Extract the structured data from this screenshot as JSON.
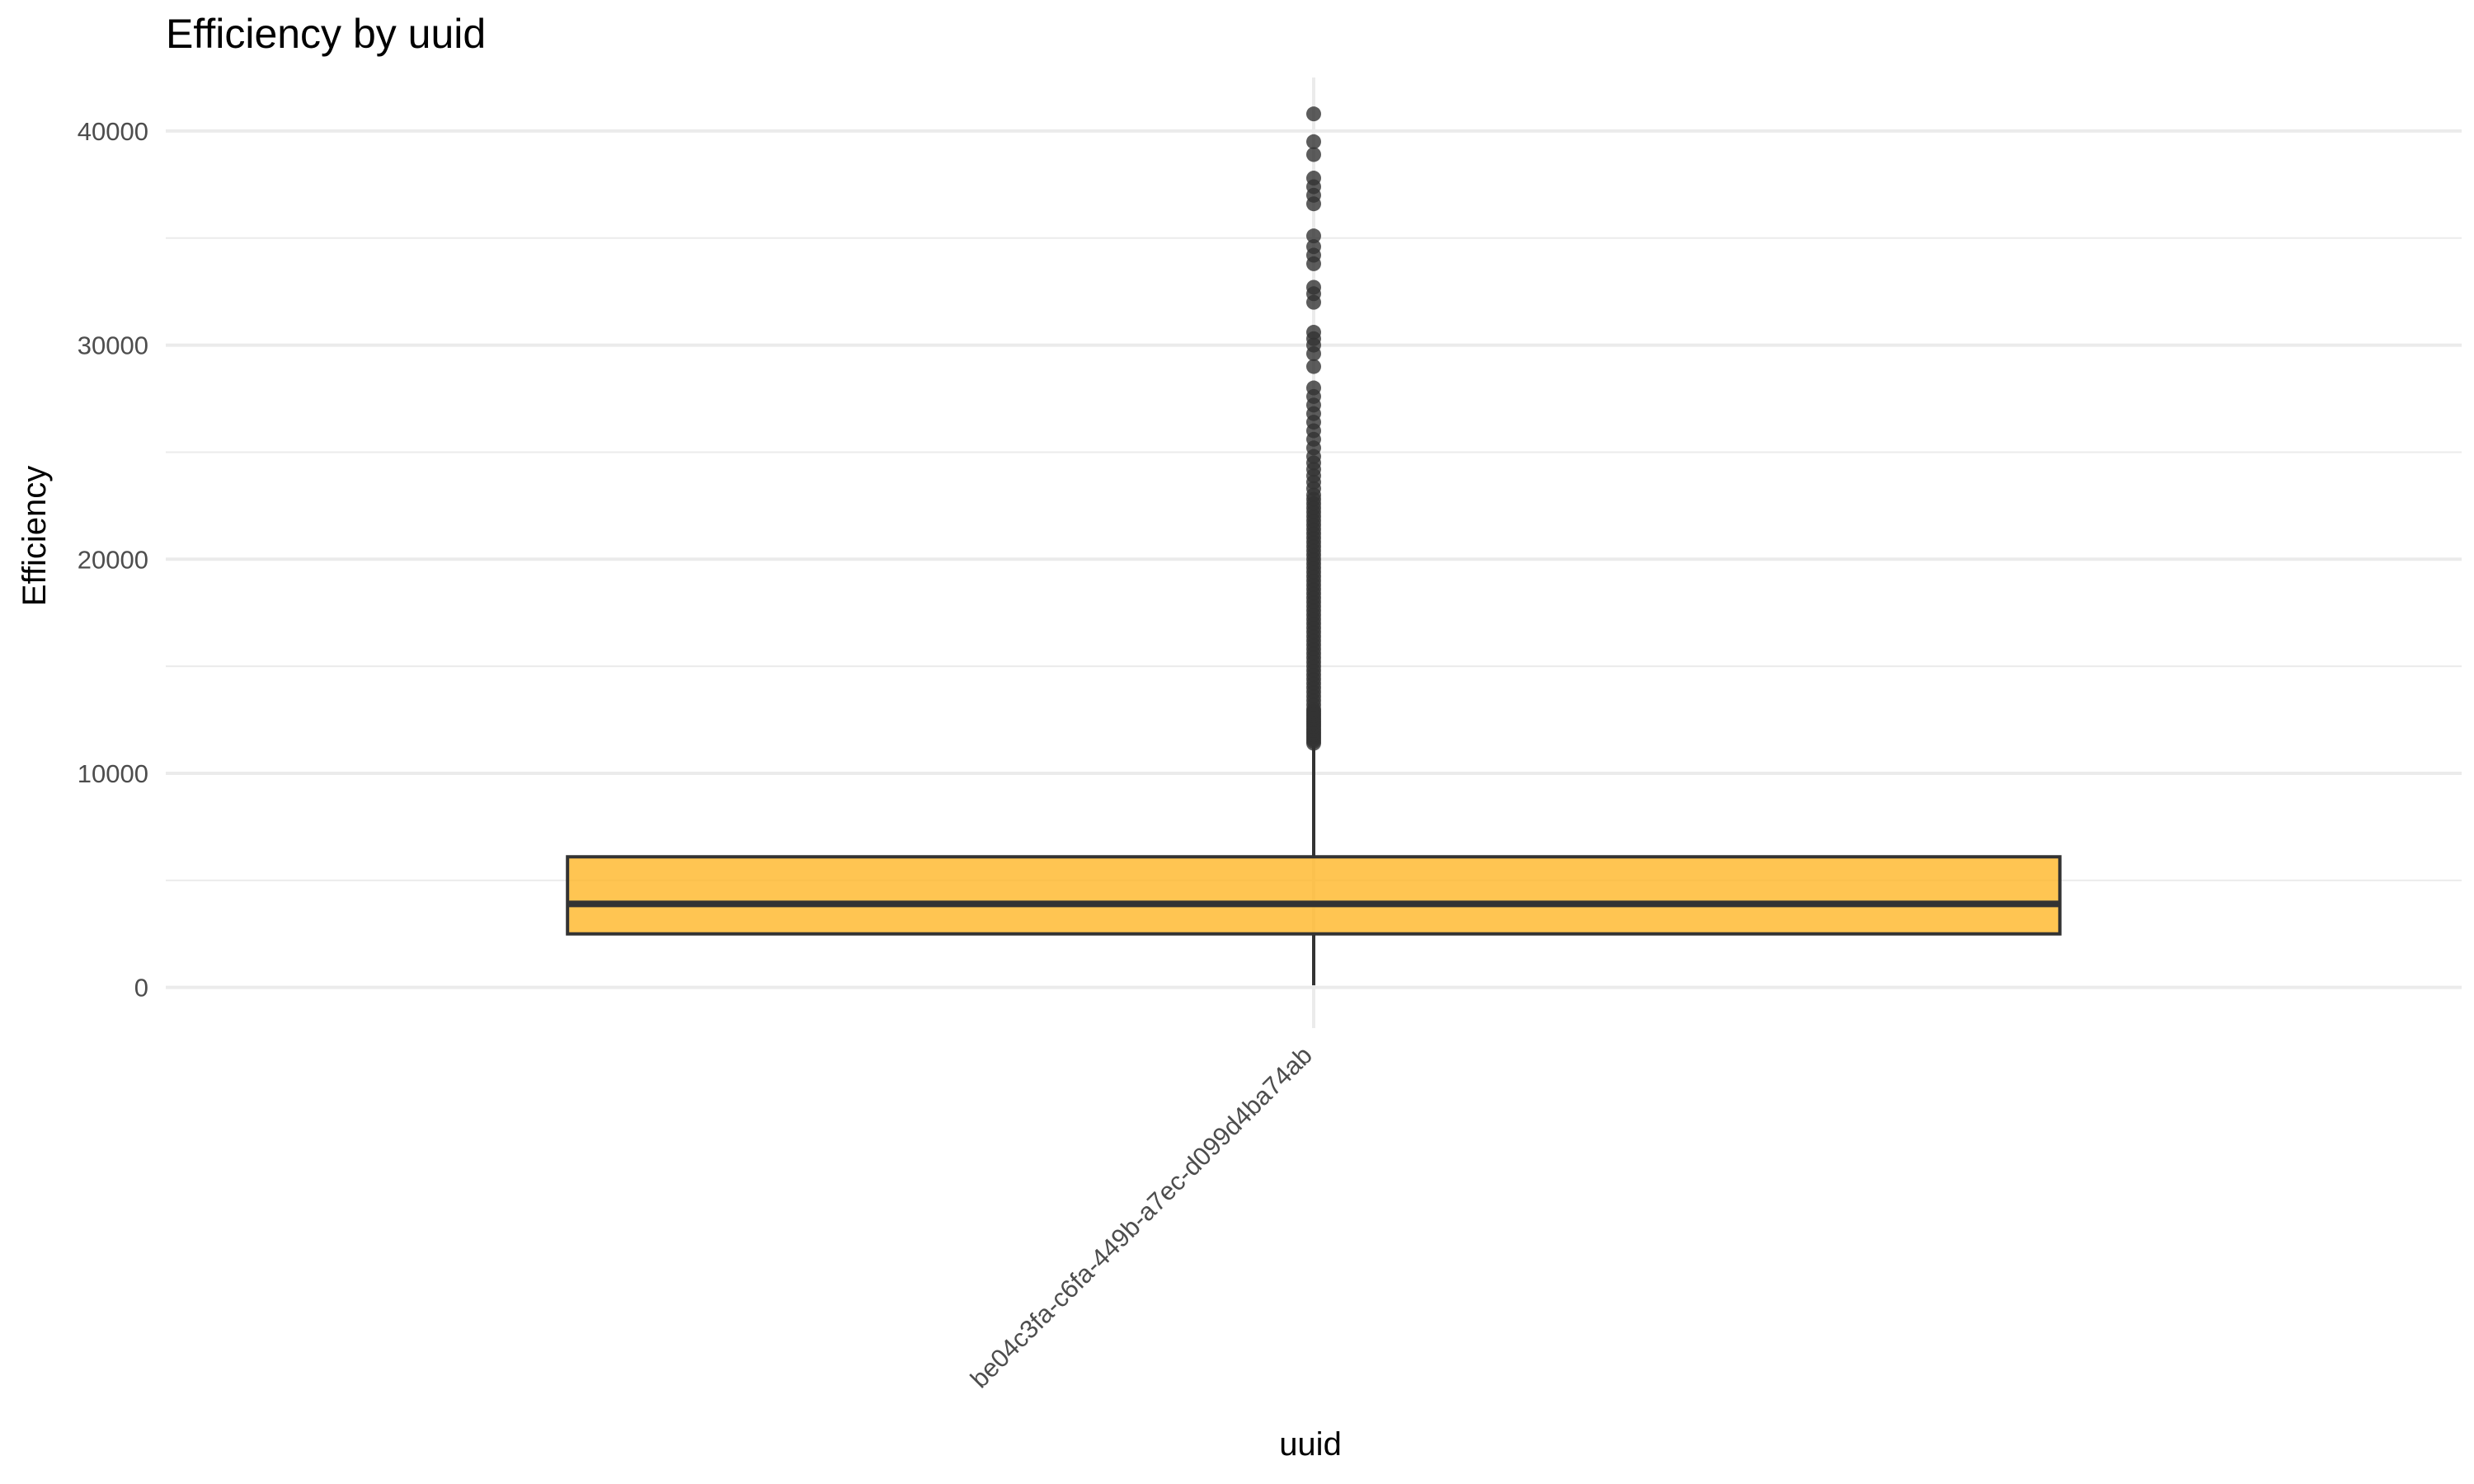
{
  "chart_data": {
    "type": "box",
    "title": "Efficiency by uuid",
    "xlabel": "uuid",
    "ylabel": "Efficiency",
    "categories": [
      "be04c3fa-c6fa-449b-a7ec-d099d4ba74ab"
    ],
    "ylim": [
      -1900,
      42500
    ],
    "yticks": [
      0,
      10000,
      20000,
      30000,
      40000
    ],
    "y_minor_ticks": [
      5000,
      15000,
      25000,
      35000
    ],
    "grid": true,
    "box_color": "#FFB627",
    "box_opacity": 0.8,
    "outlier_color": "#333333",
    "boxes": [
      {
        "category": "be04c3fa-c6fa-449b-a7ec-d099d4ba74ab",
        "whisker_low": 100,
        "q1": 2500,
        "median": 3900,
        "q3": 6100,
        "whisker_high": 11300,
        "outliers": [
          11400,
          11500,
          11600,
          11700,
          11800,
          11900,
          12000,
          12100,
          12200,
          12300,
          12400,
          12500,
          12600,
          12700,
          12800,
          12900,
          13000,
          13200,
          13400,
          13600,
          13800,
          14000,
          14200,
          14400,
          14600,
          14800,
          15000,
          15200,
          15400,
          15600,
          15800,
          16000,
          16200,
          16400,
          16600,
          16800,
          17000,
          17200,
          17400,
          17600,
          17800,
          18000,
          18200,
          18400,
          18600,
          18800,
          19000,
          19200,
          19400,
          19600,
          19800,
          20000,
          20200,
          20400,
          20600,
          20800,
          21000,
          21200,
          21400,
          21600,
          21800,
          22000,
          22200,
          22400,
          22600,
          22800,
          23000,
          23300,
          23600,
          23900,
          24200,
          24500,
          24800,
          25200,
          25600,
          26000,
          26400,
          26800,
          27200,
          27600,
          28000,
          29000,
          29600,
          30000,
          30300,
          30600,
          32000,
          32400,
          32700,
          33800,
          34200,
          34600,
          35100,
          36600,
          37000,
          37400,
          37800,
          38900,
          39500,
          40800
        ]
      }
    ]
  }
}
